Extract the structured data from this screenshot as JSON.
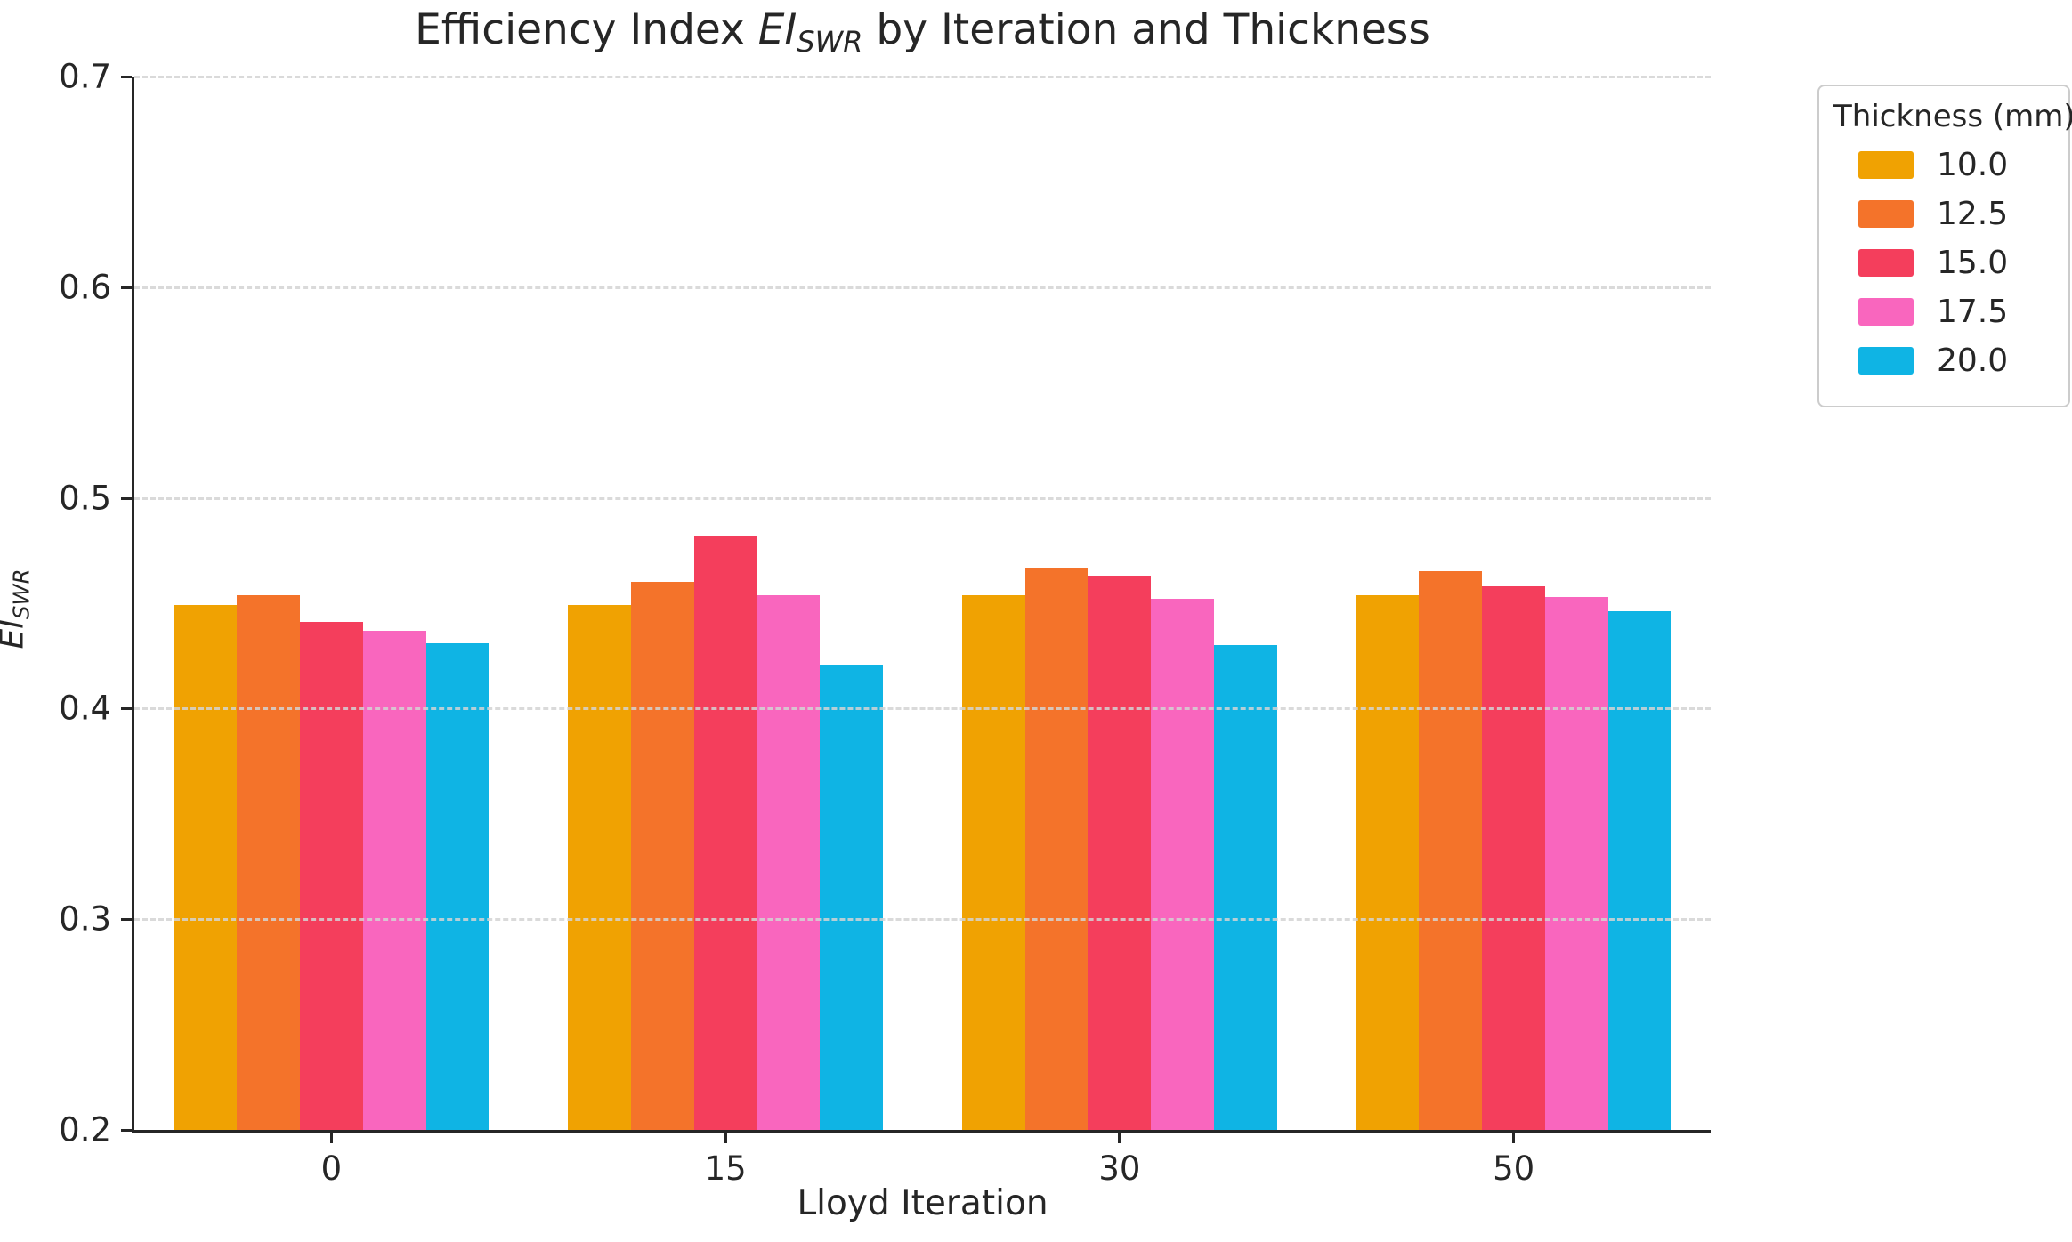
{
  "figure": {
    "title_parts": {
      "prefix": "Efficiency Index ",
      "math_italic": "EI",
      "subscript": "SWR",
      "suffix": " by Iteration and Thickness"
    },
    "background_color": "#ffffff",
    "text_color": "#262626",
    "grid_color": "#d4d4d4"
  },
  "axes": {
    "xlabel": "Lloyd Iteration",
    "ylabel_math": "EI",
    "ylabel_sub": "SWR",
    "x_tick_labels": [
      "0",
      "15",
      "30",
      "50"
    ],
    "y_tick_labels": [
      "0.2",
      "0.3",
      "0.4",
      "0.5",
      "0.6",
      "0.7"
    ]
  },
  "legend": {
    "title": "Thickness (mm)"
  },
  "chart_data": {
    "type": "bar",
    "title": "Efficiency Index EI_SWR by Iteration and Thickness",
    "xlabel": "Lloyd Iteration",
    "ylabel": "EI_SWR",
    "categories": [
      "0",
      "15",
      "30",
      "50"
    ],
    "series": [
      {
        "name": "10.0",
        "color": "#F0A202",
        "values": [
          0.449,
          0.449,
          0.454,
          0.454
        ]
      },
      {
        "name": "12.5",
        "color": "#F4732A",
        "values": [
          0.454,
          0.46,
          0.467,
          0.465
        ]
      },
      {
        "name": "15.0",
        "color": "#F43E5C",
        "values": [
          0.441,
          0.482,
          0.463,
          0.458
        ]
      },
      {
        "name": "17.5",
        "color": "#F966BE",
        "values": [
          0.437,
          0.454,
          0.452,
          0.453
        ]
      },
      {
        "name": "20.0",
        "color": "#0FB4E4",
        "values": [
          0.431,
          0.421,
          0.43,
          0.446
        ]
      }
    ],
    "ylim": [
      0.2,
      0.7
    ],
    "yticks": [
      0.2,
      0.3,
      0.4,
      0.5,
      0.6,
      0.7
    ],
    "grid": "horizontal dashed at each y tick",
    "legend_title": "Thickness (mm)",
    "legend_position": "outside upper right",
    "group_width_fraction": 0.8
  }
}
